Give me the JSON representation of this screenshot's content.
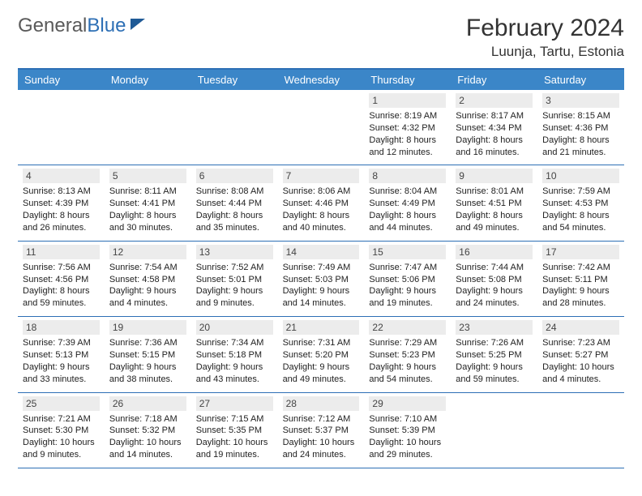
{
  "brand": {
    "name_a": "General",
    "name_b": "Blue"
  },
  "title": "February 2024",
  "location": "Luunja, Tartu, Estonia",
  "colors": {
    "header_bg": "#3b86c8",
    "header_text": "#ffffff",
    "border": "#2d6fb5",
    "daynum_bg": "#ececec",
    "text": "#333333",
    "info_fontsize": 11
  },
  "day_labels": [
    "Sunday",
    "Monday",
    "Tuesday",
    "Wednesday",
    "Thursday",
    "Friday",
    "Saturday"
  ],
  "weeks": [
    [
      {
        "empty": true
      },
      {
        "empty": true
      },
      {
        "empty": true
      },
      {
        "empty": true
      },
      {
        "day": "1",
        "sunrise": "Sunrise: 8:19 AM",
        "sunset": "Sunset: 4:32 PM",
        "daylight": "Daylight: 8 hours and 12 minutes."
      },
      {
        "day": "2",
        "sunrise": "Sunrise: 8:17 AM",
        "sunset": "Sunset: 4:34 PM",
        "daylight": "Daylight: 8 hours and 16 minutes."
      },
      {
        "day": "3",
        "sunrise": "Sunrise: 8:15 AM",
        "sunset": "Sunset: 4:36 PM",
        "daylight": "Daylight: 8 hours and 21 minutes."
      }
    ],
    [
      {
        "day": "4",
        "sunrise": "Sunrise: 8:13 AM",
        "sunset": "Sunset: 4:39 PM",
        "daylight": "Daylight: 8 hours and 26 minutes."
      },
      {
        "day": "5",
        "sunrise": "Sunrise: 8:11 AM",
        "sunset": "Sunset: 4:41 PM",
        "daylight": "Daylight: 8 hours and 30 minutes."
      },
      {
        "day": "6",
        "sunrise": "Sunrise: 8:08 AM",
        "sunset": "Sunset: 4:44 PM",
        "daylight": "Daylight: 8 hours and 35 minutes."
      },
      {
        "day": "7",
        "sunrise": "Sunrise: 8:06 AM",
        "sunset": "Sunset: 4:46 PM",
        "daylight": "Daylight: 8 hours and 40 minutes."
      },
      {
        "day": "8",
        "sunrise": "Sunrise: 8:04 AM",
        "sunset": "Sunset: 4:49 PM",
        "daylight": "Daylight: 8 hours and 44 minutes."
      },
      {
        "day": "9",
        "sunrise": "Sunrise: 8:01 AM",
        "sunset": "Sunset: 4:51 PM",
        "daylight": "Daylight: 8 hours and 49 minutes."
      },
      {
        "day": "10",
        "sunrise": "Sunrise: 7:59 AM",
        "sunset": "Sunset: 4:53 PM",
        "daylight": "Daylight: 8 hours and 54 minutes."
      }
    ],
    [
      {
        "day": "11",
        "sunrise": "Sunrise: 7:56 AM",
        "sunset": "Sunset: 4:56 PM",
        "daylight": "Daylight: 8 hours and 59 minutes."
      },
      {
        "day": "12",
        "sunrise": "Sunrise: 7:54 AM",
        "sunset": "Sunset: 4:58 PM",
        "daylight": "Daylight: 9 hours and 4 minutes."
      },
      {
        "day": "13",
        "sunrise": "Sunrise: 7:52 AM",
        "sunset": "Sunset: 5:01 PM",
        "daylight": "Daylight: 9 hours and 9 minutes."
      },
      {
        "day": "14",
        "sunrise": "Sunrise: 7:49 AM",
        "sunset": "Sunset: 5:03 PM",
        "daylight": "Daylight: 9 hours and 14 minutes."
      },
      {
        "day": "15",
        "sunrise": "Sunrise: 7:47 AM",
        "sunset": "Sunset: 5:06 PM",
        "daylight": "Daylight: 9 hours and 19 minutes."
      },
      {
        "day": "16",
        "sunrise": "Sunrise: 7:44 AM",
        "sunset": "Sunset: 5:08 PM",
        "daylight": "Daylight: 9 hours and 24 minutes."
      },
      {
        "day": "17",
        "sunrise": "Sunrise: 7:42 AM",
        "sunset": "Sunset: 5:11 PM",
        "daylight": "Daylight: 9 hours and 28 minutes."
      }
    ],
    [
      {
        "day": "18",
        "sunrise": "Sunrise: 7:39 AM",
        "sunset": "Sunset: 5:13 PM",
        "daylight": "Daylight: 9 hours and 33 minutes."
      },
      {
        "day": "19",
        "sunrise": "Sunrise: 7:36 AM",
        "sunset": "Sunset: 5:15 PM",
        "daylight": "Daylight: 9 hours and 38 minutes."
      },
      {
        "day": "20",
        "sunrise": "Sunrise: 7:34 AM",
        "sunset": "Sunset: 5:18 PM",
        "daylight": "Daylight: 9 hours and 43 minutes."
      },
      {
        "day": "21",
        "sunrise": "Sunrise: 7:31 AM",
        "sunset": "Sunset: 5:20 PM",
        "daylight": "Daylight: 9 hours and 49 minutes."
      },
      {
        "day": "22",
        "sunrise": "Sunrise: 7:29 AM",
        "sunset": "Sunset: 5:23 PM",
        "daylight": "Daylight: 9 hours and 54 minutes."
      },
      {
        "day": "23",
        "sunrise": "Sunrise: 7:26 AM",
        "sunset": "Sunset: 5:25 PM",
        "daylight": "Daylight: 9 hours and 59 minutes."
      },
      {
        "day": "24",
        "sunrise": "Sunrise: 7:23 AM",
        "sunset": "Sunset: 5:27 PM",
        "daylight": "Daylight: 10 hours and 4 minutes."
      }
    ],
    [
      {
        "day": "25",
        "sunrise": "Sunrise: 7:21 AM",
        "sunset": "Sunset: 5:30 PM",
        "daylight": "Daylight: 10 hours and 9 minutes."
      },
      {
        "day": "26",
        "sunrise": "Sunrise: 7:18 AM",
        "sunset": "Sunset: 5:32 PM",
        "daylight": "Daylight: 10 hours and 14 minutes."
      },
      {
        "day": "27",
        "sunrise": "Sunrise: 7:15 AM",
        "sunset": "Sunset: 5:35 PM",
        "daylight": "Daylight: 10 hours and 19 minutes."
      },
      {
        "day": "28",
        "sunrise": "Sunrise: 7:12 AM",
        "sunset": "Sunset: 5:37 PM",
        "daylight": "Daylight: 10 hours and 24 minutes."
      },
      {
        "day": "29",
        "sunrise": "Sunrise: 7:10 AM",
        "sunset": "Sunset: 5:39 PM",
        "daylight": "Daylight: 10 hours and 29 minutes."
      },
      {
        "empty": true
      },
      {
        "empty": true
      }
    ]
  ]
}
